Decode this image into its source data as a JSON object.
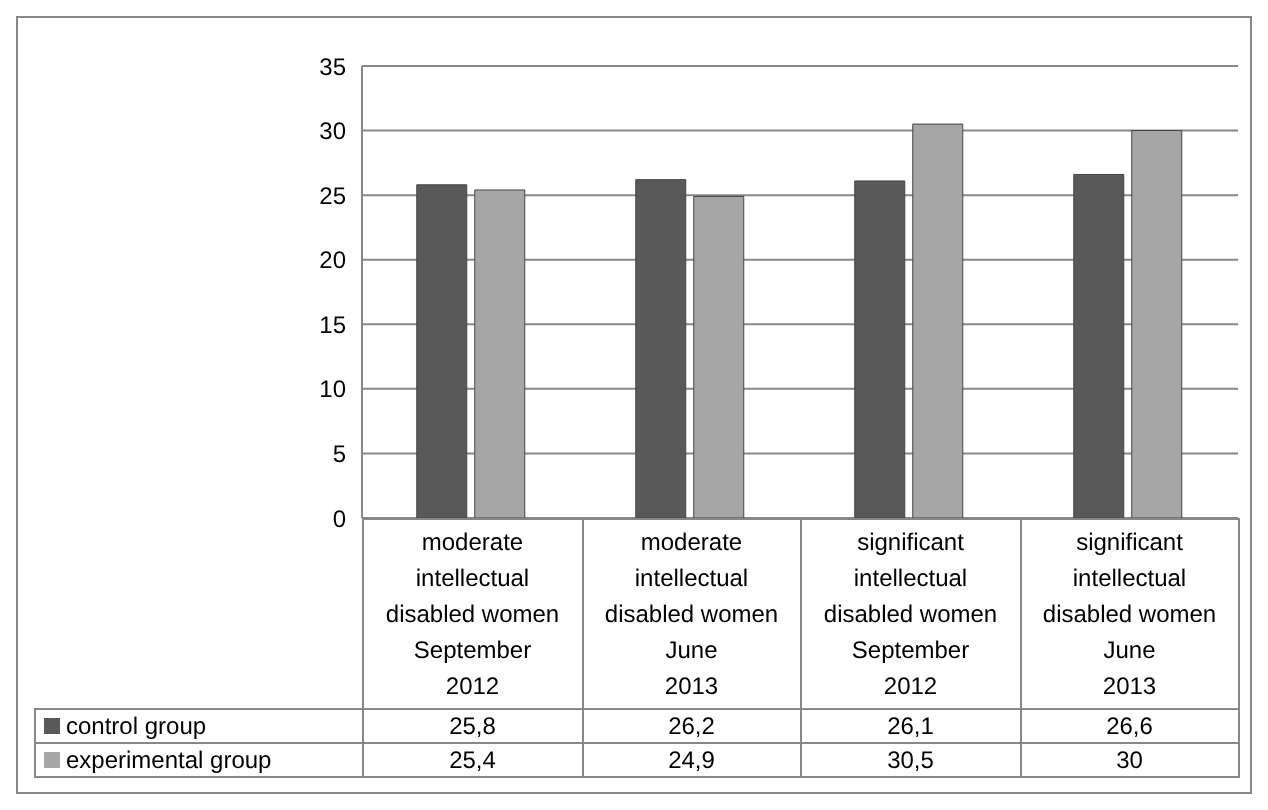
{
  "chart_data": {
    "type": "bar",
    "categories": [
      "moderate\nintellectual\ndisabled women\nSeptember\n2012",
      "moderate\nintellectual\ndisabled women\nJune\n2013",
      "significant\nintellectual\ndisabled women\nSeptember\n2012",
      "significant\nintellectual\ndisabled women\nJune\n2013"
    ],
    "series": [
      {
        "name": "control group",
        "color": "#595959",
        "values": [
          25.8,
          26.2,
          26.1,
          26.6
        ],
        "value_labels": [
          "25,8",
          "26,2",
          "26,1",
          "26,6"
        ]
      },
      {
        "name": "experimental group",
        "color": "#a6a6a6",
        "values": [
          25.4,
          24.9,
          30.5,
          30
        ],
        "value_labels": [
          "25,4",
          "24,9",
          "30,5",
          "30"
        ]
      }
    ],
    "ylim": [
      0,
      35
    ],
    "yticks": [
      0,
      5,
      10,
      15,
      20,
      25,
      30,
      35
    ],
    "grid": "y",
    "legend": "bottom"
  }
}
